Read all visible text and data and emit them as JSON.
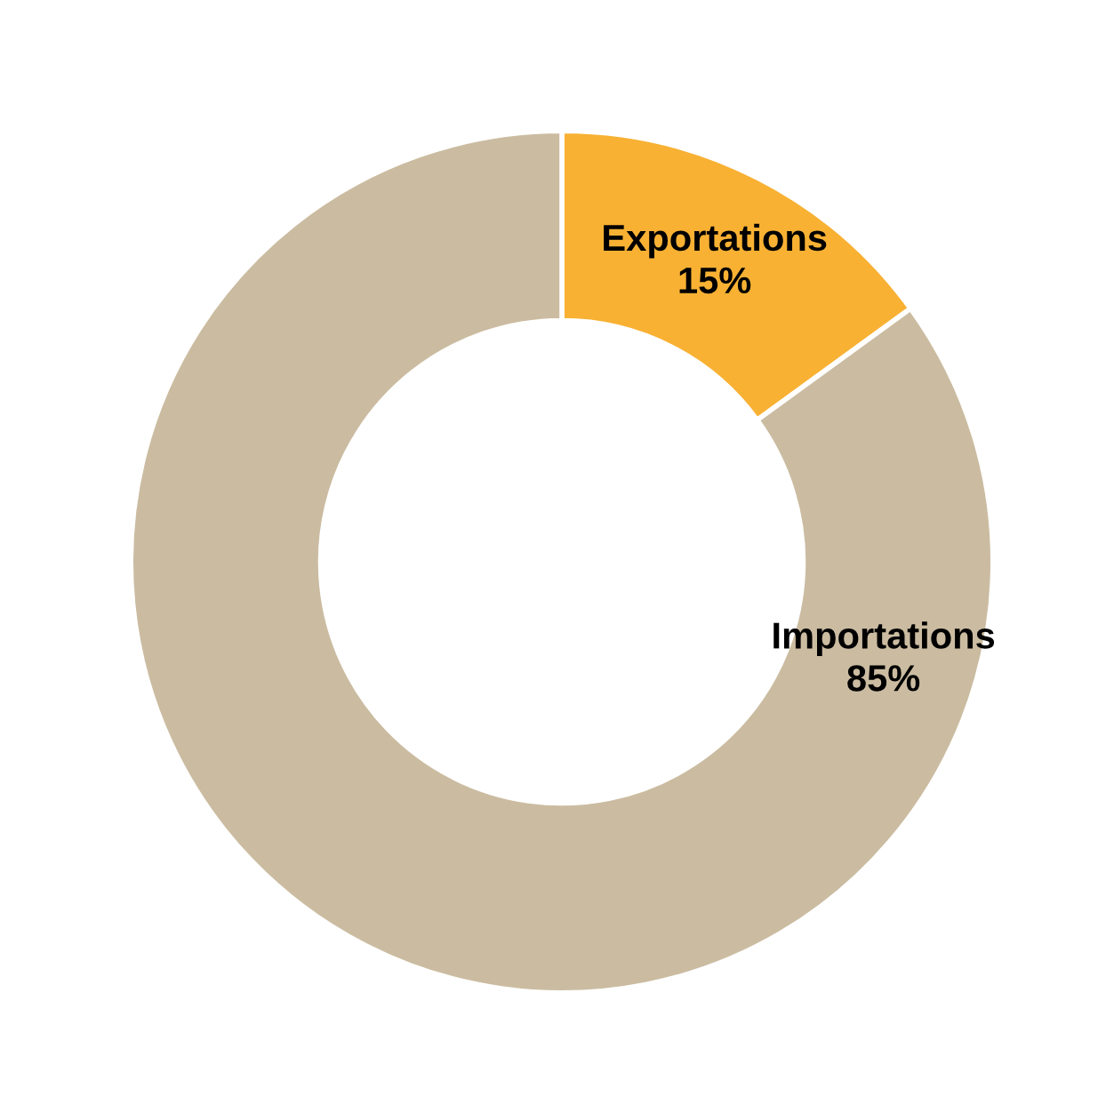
{
  "chart_data": {
    "type": "donut",
    "categories": [
      "Exportations",
      "Importations"
    ],
    "values": [
      15,
      85
    ],
    "colors": [
      "#f8b133",
      "#cbbca1"
    ],
    "value_labels": [
      "15%",
      "85%"
    ]
  }
}
